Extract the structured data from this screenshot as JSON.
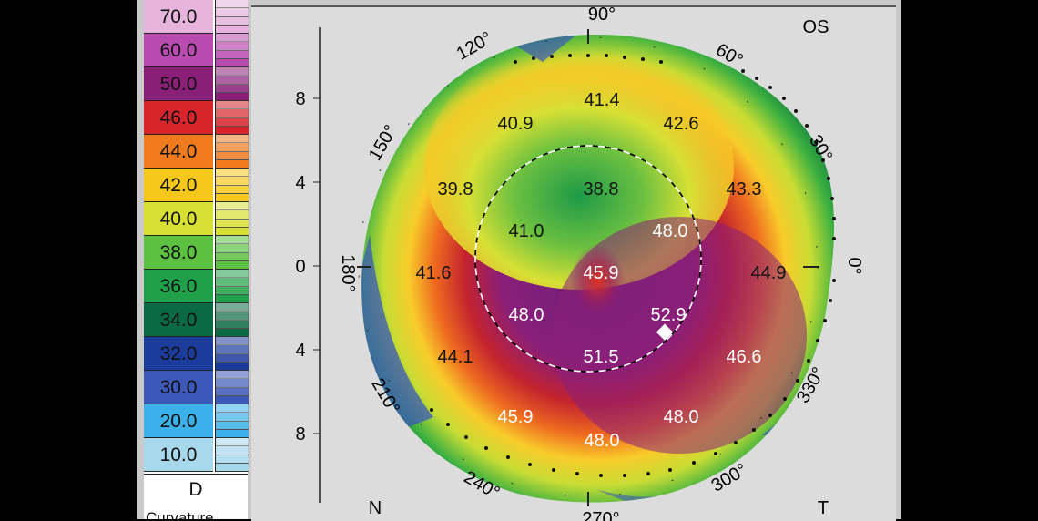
{
  "legend": {
    "entries": [
      {
        "label": "70.0",
        "color": "#e6b4dc"
      },
      {
        "label": "60.0",
        "color": "#b84ab0"
      },
      {
        "label": "50.0",
        "color": "#8a1f78"
      },
      {
        "label": "46.0",
        "color": "#d8242a"
      },
      {
        "label": "44.0",
        "color": "#f07a1e"
      },
      {
        "label": "42.0",
        "color": "#f7c81c"
      },
      {
        "label": "40.0",
        "color": "#d7e032"
      },
      {
        "label": "38.0",
        "color": "#5cc040"
      },
      {
        "label": "36.0",
        "color": "#20a048"
      },
      {
        "label": "34.0",
        "color": "#0a6a44"
      },
      {
        "label": "32.0",
        "color": "#1c3c9c"
      },
      {
        "label": "30.0",
        "color": "#3c58b8"
      },
      {
        "label": "20.0",
        "color": "#3cb0e8"
      },
      {
        "label": "10.0",
        "color": "#a8d8ec"
      }
    ],
    "unit": "D",
    "below_label": "Curvature"
  },
  "map": {
    "eye": "OS",
    "nasal_label": "N",
    "temporal_label": "T",
    "y_ticks": [
      "8",
      "4",
      "0",
      "4",
      "8"
    ],
    "angle_labels": [
      "90°",
      "60°",
      "30°",
      "0°",
      "330°",
      "300°",
      "270°",
      "240°",
      "210°",
      "180°",
      "150°",
      "120°"
    ],
    "zone_values": [
      {
        "text": "41.4",
        "light": false
      },
      {
        "text": "40.9",
        "light": false
      },
      {
        "text": "42.6",
        "light": false
      },
      {
        "text": "39.8",
        "light": false
      },
      {
        "text": "38.8",
        "light": false
      },
      {
        "text": "43.3",
        "light": false
      },
      {
        "text": "41.0",
        "light": false
      },
      {
        "text": "48.0",
        "light": true
      },
      {
        "text": "41.6",
        "light": false
      },
      {
        "text": "45.9",
        "light": true
      },
      {
        "text": "44.9",
        "light": false
      },
      {
        "text": "48.0",
        "light": true
      },
      {
        "text": "52.9",
        "light": true
      },
      {
        "text": "44.1",
        "light": false
      },
      {
        "text": "51.5",
        "light": true
      },
      {
        "text": "46.6",
        "light": true
      },
      {
        "text": "45.9",
        "light": true
      },
      {
        "text": "48.0",
        "light": true
      },
      {
        "text": "48.0",
        "light": true
      }
    ]
  }
}
